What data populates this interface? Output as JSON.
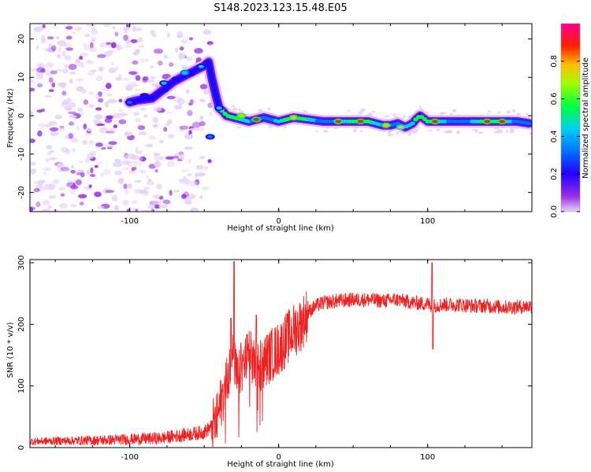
{
  "title": "S148.2023.123.15.48.E05",
  "chart_data": [
    {
      "type": "heatmap",
      "xlabel": "Height of straight line (km)",
      "ylabel": "Frequency (Hz)",
      "xlim": [
        -167,
        170
      ],
      "ylim": [
        -25,
        24
      ],
      "xticks": [
        -100,
        0,
        100
      ],
      "xtick_labels": [
        "-100",
        "0",
        "100"
      ],
      "yticks": [
        -20,
        -10,
        0,
        10,
        20
      ],
      "ytick_labels": [
        "-20",
        "-10",
        "0",
        "10",
        "20"
      ],
      "grid": false,
      "colormap": [
        "#d8b8f0",
        "#7a00e6",
        "#0000ff",
        "#00c8ff",
        "#00ff44",
        "#ffd000",
        "#ff0000",
        "#ff0090"
      ],
      "noise_region_x": [
        -167,
        -45
      ],
      "ridge": {
        "x": [
          -100,
          -95,
          -85,
          -80,
          -75,
          -70,
          -65,
          -60,
          -55,
          -50,
          -47,
          -45,
          -42,
          -40,
          -37,
          -35,
          -30,
          -25,
          -20,
          -15,
          -10,
          -5,
          0,
          5,
          10,
          20,
          30,
          40,
          50,
          60,
          70,
          75,
          80,
          85,
          90,
          92,
          95,
          100,
          105,
          110,
          120,
          130,
          140,
          150,
          160,
          168
        ],
        "y": [
          3.5,
          4,
          4.5,
          6,
          7.5,
          9,
          10,
          11,
          12,
          13,
          14,
          10,
          5,
          2,
          1,
          0,
          -0.5,
          -1,
          -1.5,
          -1,
          -0.5,
          -1,
          -1.5,
          -1,
          -0.5,
          -1,
          -1.5,
          -1.5,
          -1.5,
          -1.5,
          -2.5,
          -2.5,
          -2,
          -3,
          -2,
          -1,
          0,
          -1.5,
          -1.5,
          -1.5,
          -1.5,
          -1.5,
          -1.5,
          -1.5,
          -1.5,
          -2
        ]
      },
      "hotspots": [
        {
          "x": -100,
          "y": 3.5,
          "level": 0.4
        },
        {
          "x": -90,
          "y": 5.2,
          "level": 0.3
        },
        {
          "x": -77,
          "y": 8.5,
          "level": 0.45
        },
        {
          "x": -63,
          "y": 11.2,
          "level": 0.5
        },
        {
          "x": -52,
          "y": 12.8,
          "level": 0.45
        },
        {
          "x": -46,
          "y": -5.5,
          "level": 0.35
        },
        {
          "x": -40,
          "y": 2,
          "level": 0.45
        },
        {
          "x": -25,
          "y": 0,
          "level": 0.85
        },
        {
          "x": -15,
          "y": -1,
          "level": 0.9
        },
        {
          "x": 10,
          "y": -0.5,
          "level": 0.85
        },
        {
          "x": 40,
          "y": -1.5,
          "level": 0.95
        },
        {
          "x": 55,
          "y": -1.5,
          "level": 0.9
        },
        {
          "x": 72,
          "y": -2.5,
          "level": 0.85
        },
        {
          "x": 82,
          "y": -3,
          "level": 0.8
        },
        {
          "x": 105,
          "y": -1.5,
          "level": 0.9
        },
        {
          "x": 140,
          "y": -1.5,
          "level": 0.9
        },
        {
          "x": 150,
          "y": -1.5,
          "level": 0.95
        }
      ],
      "colorbar": {
        "label": "Normalized spectral amplitude",
        "range": [
          0,
          1
        ],
        "ticks": [
          0.0,
          0.2,
          0.4,
          0.6,
          0.8
        ],
        "tick_labels": [
          "0.0",
          "0.2",
          "0.4",
          "0.6",
          "0.8"
        ]
      }
    },
    {
      "type": "line",
      "xlabel": "Height of straight line (km)",
      "ylabel": "SNR (10 * v/v)",
      "xlim": [
        -167,
        170
      ],
      "ylim": [
        0,
        305
      ],
      "xticks": [
        -100,
        0,
        100
      ],
      "xtick_labels": [
        "-100",
        "0",
        "100"
      ],
      "yticks": [
        0,
        100,
        200,
        300
      ],
      "ytick_labels": [
        "0",
        "100",
        "200",
        "300"
      ],
      "grid": false,
      "series_color": "#ee2222",
      "envelope": {
        "x": [
          -167,
          -120,
          -80,
          -50,
          -42,
          -38,
          -35,
          -32,
          -30,
          -28,
          -25,
          -20,
          -15,
          -10,
          -5,
          0,
          5,
          10,
          15,
          20,
          25,
          30,
          40,
          50,
          60,
          70,
          80,
          90,
          100,
          103,
          110,
          120,
          130,
          140,
          150,
          160,
          170
        ],
        "y": [
          10,
          12,
          15,
          25,
          40,
          80,
          110,
          150,
          140,
          110,
          130,
          150,
          130,
          140,
          150,
          160,
          175,
          190,
          200,
          220,
          230,
          235,
          238,
          240,
          240,
          238,
          240,
          235,
          233,
          230,
          232,
          232,
          230,
          230,
          228,
          228,
          230
        ]
      },
      "spikes": [
        {
          "x": -30,
          "y": 302
        },
        {
          "x": -32,
          "y": 210
        },
        {
          "x": -15,
          "y": 215
        },
        {
          "x": 103,
          "y": 300
        },
        {
          "x": 103.5,
          "y": 160
        }
      ]
    }
  ]
}
